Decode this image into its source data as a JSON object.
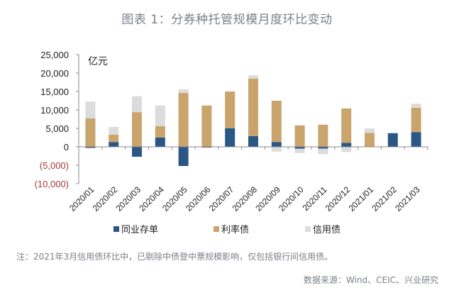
{
  "title": "图表 1：分券种托管规模月度环比变动",
  "chart_data": {
    "type": "bar",
    "stacked": true,
    "title": "图表 1：分券种托管规模月度环比变动",
    "unit_label": "亿元",
    "xlabel": "",
    "ylabel": "亿元",
    "ylim": [
      -10000,
      25000
    ],
    "yticks": [
      25000,
      20000,
      15000,
      10000,
      5000,
      0,
      -5000,
      -10000
    ],
    "ytick_labels": [
      "25,000",
      "20,000",
      "15,000",
      "10,000",
      "5,000",
      "0",
      "(5,000)",
      "(10,000)"
    ],
    "categories": [
      "2020/01",
      "2020/02",
      "2020/03",
      "2020/04",
      "2020/05",
      "2020/06",
      "2020/07",
      "2020/08",
      "2020/09",
      "2020/10",
      "2020/11",
      "2020/12",
      "2021/01",
      "2021/02",
      "2021/03"
    ],
    "series": [
      {
        "name": "同业存单",
        "color": "#2b5785",
        "values": [
          -300,
          1300,
          -2700,
          2500,
          -5200,
          -200,
          5000,
          2900,
          1300,
          -500,
          -500,
          1100,
          0,
          3700,
          4000
        ]
      },
      {
        "name": "利率债",
        "color": "#c9a46c",
        "values": [
          7700,
          2000,
          9400,
          3100,
          14600,
          11200,
          10000,
          15600,
          11200,
          5800,
          6000,
          9300,
          3800,
          0,
          6600
        ]
      },
      {
        "name": "信用债",
        "color": "#dcdcdc",
        "values": [
          4600,
          2100,
          4300,
          5600,
          1000,
          0,
          0,
          900,
          -1300,
          -1200,
          -1500,
          -1400,
          1200,
          0,
          1100
        ]
      }
    ],
    "legend_position": "bottom",
    "grid": false
  },
  "note": "注：2021年3月信用债环比中，已剔除中债登中票规模影响，仅包括银行间信用债。",
  "source": "数据来源：Wind、CEIC、兴业研究"
}
